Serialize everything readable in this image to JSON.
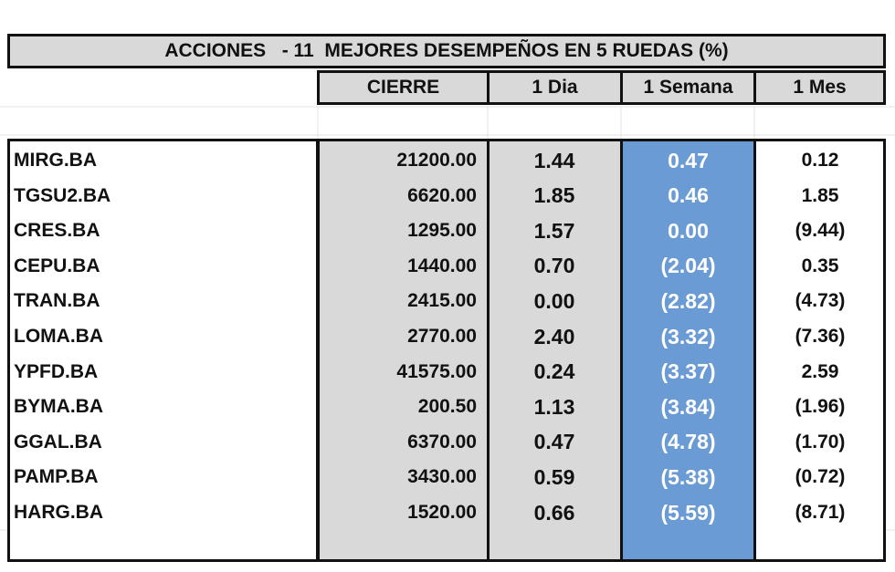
{
  "title": "ACCIONES   - 11  MEJORES DESEMPEÑOS EN 5 RUEDAS (%)",
  "headers": [
    "CIERRE",
    "1 Dia",
    "1 Semana",
    "1 Mes"
  ],
  "colors": {
    "grey_fill": "#d9d9d9",
    "blue_fill": "#6a9bd4",
    "border": "#111111"
  },
  "rows": [
    {
      "ticker": "MIRG.BA",
      "cierre": "21200.00",
      "dia": "1.44",
      "semana": "0.47",
      "mes": "0.12"
    },
    {
      "ticker": "TGSU2.BA",
      "cierre": "6620.00",
      "dia": "1.85",
      "semana": "0.46",
      "mes": "1.85"
    },
    {
      "ticker": "CRES.BA",
      "cierre": "1295.00",
      "dia": "1.57",
      "semana": "0.00",
      "mes": "(9.44)"
    },
    {
      "ticker": "CEPU.BA",
      "cierre": "1440.00",
      "dia": "0.70",
      "semana": "(2.04)",
      "mes": "0.35"
    },
    {
      "ticker": "TRAN.BA",
      "cierre": "2415.00",
      "dia": "0.00",
      "semana": "(2.82)",
      "mes": "(4.73)"
    },
    {
      "ticker": "LOMA.BA",
      "cierre": "2770.00",
      "dia": "2.40",
      "semana": "(3.32)",
      "mes": "(7.36)"
    },
    {
      "ticker": "YPFD.BA",
      "cierre": "41575.00",
      "dia": "0.24",
      "semana": "(3.37)",
      "mes": "2.59"
    },
    {
      "ticker": "BYMA.BA",
      "cierre": "200.50",
      "dia": "1.13",
      "semana": "(3.84)",
      "mes": "(1.96)"
    },
    {
      "ticker": "GGAL.BA",
      "cierre": "6370.00",
      "dia": "0.47",
      "semana": "(4.78)",
      "mes": "(1.70)"
    },
    {
      "ticker": "PAMP.BA",
      "cierre": "3430.00",
      "dia": "0.59",
      "semana": "(5.38)",
      "mes": "(0.72)"
    },
    {
      "ticker": "HARG.BA",
      "cierre": "1520.00",
      "dia": "0.66",
      "semana": "(5.59)",
      "mes": "(8.71)"
    }
  ]
}
